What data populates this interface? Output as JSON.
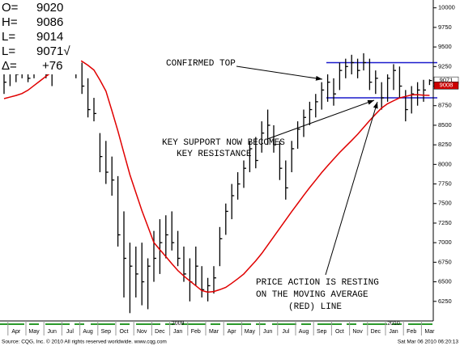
{
  "chart_data": {
    "type": "ohlc",
    "ylim": [
      6000,
      10100
    ],
    "yticks": [
      6250,
      6500,
      6750,
      7000,
      7250,
      7500,
      7750,
      8000,
      8250,
      8500,
      8750,
      9000,
      9250,
      9500,
      9750,
      10000
    ],
    "categories": [
      null,
      null,
      "Apr",
      null,
      null,
      "May",
      null,
      null,
      "Jun",
      null,
      null,
      "Jul",
      null,
      null,
      "Aug",
      null,
      null,
      "Sep",
      null,
      null,
      "Oct",
      null,
      null,
      "Nov",
      null,
      null,
      "Dec",
      null,
      null,
      "Jan",
      null,
      null,
      "Feb",
      null,
      null,
      "Mar",
      null,
      null,
      "Apr",
      null,
      null,
      "May",
      null,
      null,
      "Jun",
      null,
      null,
      "Jul",
      null,
      null,
      "Aug",
      null,
      null,
      "Sep",
      null,
      null,
      "Oct",
      null,
      null,
      "Nov",
      null,
      null,
      "Dec",
      null,
      null,
      "Jan",
      null,
      null,
      "Feb",
      null,
      null,
      "Mar"
    ],
    "years": [
      null,
      null,
      null,
      null,
      null,
      null,
      null,
      null,
      null,
      null,
      null,
      null,
      null,
      null,
      null,
      null,
      null,
      null,
      null,
      null,
      null,
      null,
      null,
      null,
      null,
      null,
      null,
      null,
      null,
      "2009",
      null,
      null,
      null,
      null,
      null,
      null,
      null,
      null,
      null,
      null,
      null,
      null,
      null,
      null,
      null,
      null,
      null,
      null,
      null,
      null,
      null,
      null,
      null,
      null,
      null,
      null,
      null,
      null,
      null,
      null,
      null,
      null,
      null,
      null,
      null,
      "2010",
      null,
      null,
      null,
      null,
      null,
      null
    ],
    "ohlc": {
      "color": "#000000",
      "high": [
        9150,
        9250,
        9300,
        9300,
        9250,
        9350,
        9400,
        9300,
        9250,
        9450,
        9650,
        9750,
        9700,
        9300,
        9100,
        8850,
        8400,
        8300,
        8100,
        7850,
        7400,
        7000,
        6950,
        7000,
        6800,
        7150,
        7300,
        7350,
        7400,
        7150,
        6950,
        6800,
        6950,
        6700,
        6550,
        6700,
        7200,
        7500,
        7750,
        7900,
        8050,
        8300,
        8350,
        8550,
        8700,
        8500,
        8300,
        8050,
        8300,
        8550,
        8700,
        8800,
        8900,
        9050,
        9150,
        9100,
        9300,
        9350,
        9400,
        9350,
        9420,
        9350,
        9200,
        9050,
        9150,
        9280,
        9250,
        8950,
        9000,
        9050,
        9080,
        9086
      ],
      "low": [
        8900,
        9000,
        9050,
        9100,
        9050,
        9100,
        9150,
        9100,
        9000,
        9150,
        9300,
        9400,
        9100,
        8900,
        8600,
        8550,
        7900,
        7750,
        7600,
        6950,
        6300,
        6100,
        6300,
        6200,
        6150,
        6500,
        6600,
        6800,
        6900,
        6700,
        6500,
        6250,
        6450,
        6300,
        6250,
        6350,
        6700,
        7100,
        7300,
        7550,
        7700,
        7900,
        7950,
        8150,
        8250,
        8150,
        7800,
        7550,
        7900,
        8200,
        8350,
        8500,
        8600,
        8700,
        8800,
        8750,
        8950,
        9100,
        9150,
        9100,
        9200,
        8950,
        8900,
        8700,
        8800,
        8950,
        8850,
        8550,
        8650,
        8750,
        8800,
        9014
      ],
      "close": [
        9050,
        9200,
        9150,
        9250,
        9100,
        9300,
        9250,
        9150,
        9200,
        9400,
        9600,
        9500,
        9200,
        9000,
        8700,
        8650,
        8100,
        7900,
        7800,
        7100,
        6800,
        6700,
        6600,
        6500,
        6700,
        6800,
        7000,
        7100,
        7000,
        6800,
        6600,
        6500,
        6700,
        6400,
        6450,
        6550,
        7050,
        7400,
        7600,
        7750,
        7950,
        8200,
        8050,
        8400,
        8500,
        8250,
        7950,
        7700,
        8200,
        8450,
        8600,
        8700,
        8800,
        8950,
        9050,
        8900,
        9200,
        9250,
        9300,
        9200,
        9300,
        9050,
        9100,
        8850,
        9100,
        9200,
        9000,
        8700,
        8900,
        8950,
        8950,
        9071
      ]
    },
    "moving_average": {
      "color": "#e00000",
      "values": [
        8840,
        8860,
        8880,
        8905,
        8948,
        9007,
        9066,
        9125,
        9180,
        9235,
        9283,
        9335,
        9340,
        9317,
        9266,
        9205,
        9078,
        8936,
        8685,
        8426,
        8145,
        7868,
        7638,
        7410,
        7206,
        7002,
        6910,
        6822,
        6731,
        6644,
        6574,
        6511,
        6450,
        6388,
        6368,
        6376,
        6400,
        6429,
        6482,
        6539,
        6600,
        6684,
        6768,
        6862,
        6969,
        7076,
        7183,
        7290,
        7397,
        7500,
        7604,
        7704,
        7799,
        7895,
        7983,
        8068,
        8152,
        8229,
        8305,
        8384,
        8472,
        8560,
        8642,
        8720,
        8775,
        8813,
        8849,
        8868,
        8888,
        8890,
        8884,
        8881
      ]
    },
    "levels": [
      9300,
      8850
    ],
    "level_color": "#1a1acc",
    "price_tags": [
      {
        "value": 9071,
        "color": "#ffffff",
        "text_color": "#000000"
      },
      {
        "value": 9008,
        "color": "#cc0000",
        "text_color": "#ffffff"
      }
    ],
    "quote_panel": [
      {
        "label": "O=",
        "value": 9020
      },
      {
        "label": "H=",
        "value": 9086
      },
      {
        "label": "L=",
        "value": 9014
      },
      {
        "label": "L=",
        "value": 9071,
        "value_label": "9071√"
      },
      {
        "label": "Δ=",
        "value": 76,
        "value_label": "+76"
      }
    ],
    "annotations": [
      "CONFIRMED TOP",
      "KEY SUPPORT NOW BECOMES",
      "KEY RESISTANCE",
      "PRICE ACTION IS RESTING",
      "ON THE MOVING AVERAGE",
      "(RED) LINE"
    ],
    "source": "Source: CQG, Inc. © 2010 All rights reserved worldwide. www.cqg.com",
    "timestamp": "Sat Mar 06 2010 06:20:13"
  }
}
